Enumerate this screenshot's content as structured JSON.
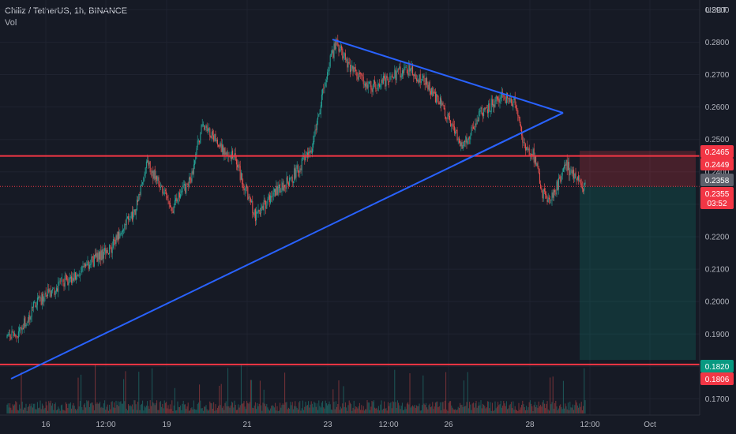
{
  "legend": {
    "symbol": "Chiliz / TetherUS, 1h, BINANCE",
    "indicator": "Vol"
  },
  "price_axis": {
    "unit": "USDT",
    "ticks": [
      "0.2900",
      "0.2800",
      "0.2700",
      "0.2600",
      "0.2500",
      "0.2400",
      "0.2300",
      "0.2200",
      "0.2100",
      "0.2000",
      "0.1900",
      "0.1800",
      "0.1700"
    ]
  },
  "time_axis": {
    "ticks": [
      "16",
      "12:00",
      "19",
      "21",
      "23",
      "12:00",
      "26",
      "28",
      "12:00",
      "Oct"
    ]
  },
  "price_tags": {
    "stop_level": "0.2465",
    "resistance": "0.2449",
    "last_price": "0.2358",
    "current": "0.2355",
    "countdown": "03:52",
    "target": "0.1820",
    "support": "0.1806"
  },
  "colors": {
    "background": "#161a25",
    "bull_candle": "#26a69a",
    "bear_candle": "#ef5350",
    "horizontal_line": "#f23645",
    "trend_line": "#2962ff",
    "stop_zone": "#f23645",
    "target_zone": "#089981"
  },
  "chart_data": {
    "type": "candlestick",
    "y_unit": "USDT",
    "ylim": [
      0.165,
      0.293
    ],
    "horizontal_levels": [
      0.2449,
      0.1806
    ],
    "position": {
      "entry": 0.2355,
      "stop": 0.2465,
      "target": 0.182
    },
    "close_path": [
      {
        "bar": 0,
        "price": 0.189
      },
      {
        "bar": 10,
        "price": 0.19
      },
      {
        "bar": 30,
        "price": 0.199
      },
      {
        "bar": 55,
        "price": 0.205
      },
      {
        "bar": 80,
        "price": 0.21
      },
      {
        "bar": 110,
        "price": 0.217
      },
      {
        "bar": 135,
        "price": 0.228
      },
      {
        "bar": 148,
        "price": 0.243
      },
      {
        "bar": 162,
        "price": 0.235
      },
      {
        "bar": 175,
        "price": 0.229
      },
      {
        "bar": 195,
        "price": 0.239
      },
      {
        "bar": 205,
        "price": 0.254
      },
      {
        "bar": 225,
        "price": 0.248
      },
      {
        "bar": 240,
        "price": 0.244
      },
      {
        "bar": 262,
        "price": 0.226
      },
      {
        "bar": 280,
        "price": 0.233
      },
      {
        "bar": 300,
        "price": 0.238
      },
      {
        "bar": 320,
        "price": 0.246
      },
      {
        "bar": 340,
        "price": 0.274
      },
      {
        "bar": 348,
        "price": 0.28
      },
      {
        "bar": 360,
        "price": 0.273
      },
      {
        "bar": 380,
        "price": 0.266
      },
      {
        "bar": 400,
        "price": 0.268
      },
      {
        "bar": 420,
        "price": 0.272
      },
      {
        "bar": 440,
        "price": 0.268
      },
      {
        "bar": 460,
        "price": 0.26
      },
      {
        "bar": 480,
        "price": 0.248
      },
      {
        "bar": 500,
        "price": 0.258
      },
      {
        "bar": 520,
        "price": 0.263
      },
      {
        "bar": 535,
        "price": 0.262
      },
      {
        "bar": 545,
        "price": 0.248
      },
      {
        "bar": 555,
        "price": 0.246
      },
      {
        "bar": 565,
        "price": 0.233
      },
      {
        "bar": 575,
        "price": 0.232
      },
      {
        "bar": 590,
        "price": 0.242
      },
      {
        "bar": 605,
        "price": 0.236
      },
      {
        "bar": 610,
        "price": 0.2355
      }
    ]
  }
}
